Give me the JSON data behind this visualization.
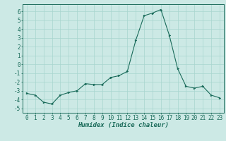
{
  "x": [
    0,
    1,
    2,
    3,
    4,
    5,
    6,
    7,
    8,
    9,
    10,
    11,
    12,
    13,
    14,
    15,
    16,
    17,
    18,
    19,
    20,
    21,
    22,
    23
  ],
  "y": [
    -3.3,
    -3.5,
    -4.3,
    -4.5,
    -3.5,
    -3.2,
    -3.0,
    -2.2,
    -2.3,
    -2.3,
    -1.5,
    -1.3,
    -0.8,
    2.7,
    5.5,
    5.8,
    6.2,
    3.3,
    -0.5,
    -2.5,
    -2.7,
    -2.5,
    -3.5,
    -3.8
  ],
  "xlabel": "Humidex (Indice chaleur)",
  "ylim": [
    -5.5,
    6.8
  ],
  "xlim": [
    -0.5,
    23.5
  ],
  "yticks": [
    -5,
    -4,
    -3,
    -2,
    -1,
    0,
    1,
    2,
    3,
    4,
    5,
    6
  ],
  "xticks": [
    0,
    1,
    2,
    3,
    4,
    5,
    6,
    7,
    8,
    9,
    10,
    11,
    12,
    13,
    14,
    15,
    16,
    17,
    18,
    19,
    20,
    21,
    22,
    23
  ],
  "line_color": "#1a6b5a",
  "marker_color": "#1a6b5a",
  "bg_color": "#cce9e5",
  "grid_color": "#a8d5cf",
  "axis_color": "#1a6b5a",
  "label_fontsize": 6.5,
  "tick_fontsize": 5.5
}
